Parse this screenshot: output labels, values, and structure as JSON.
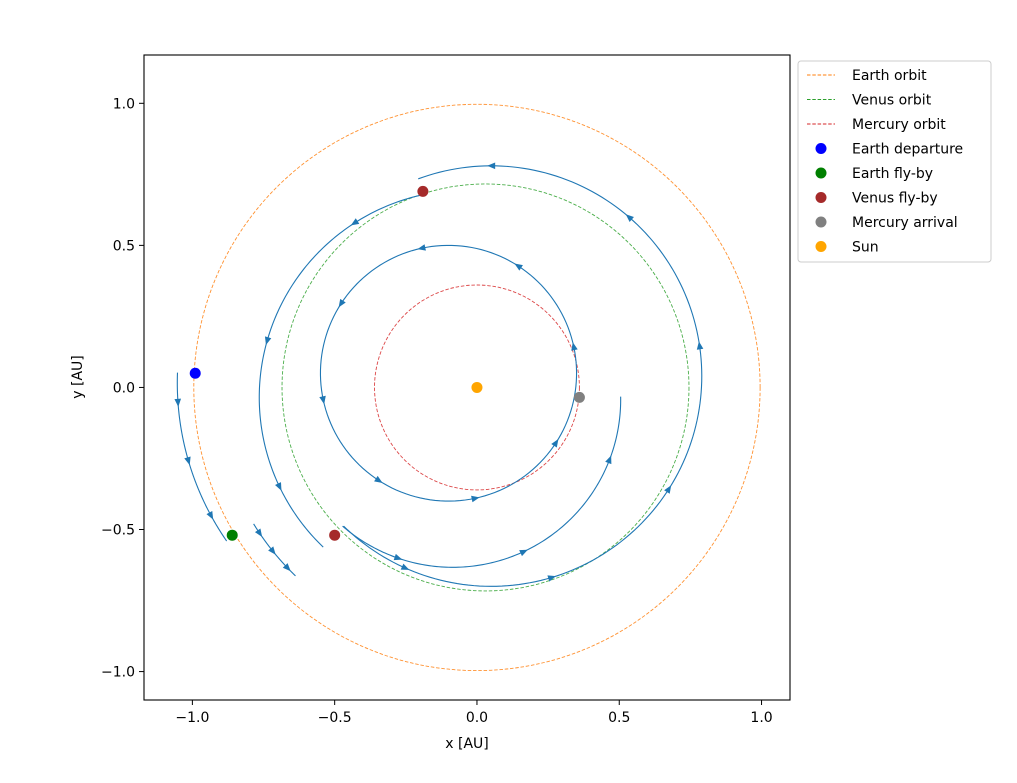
{
  "chart_data": {
    "type": "line",
    "xlabel": "x [AU]",
    "ylabel": "y [AU]",
    "xlim": [
      -1.17,
      1.1
    ],
    "ylim": [
      -1.1,
      1.17
    ],
    "aspect": "equal",
    "grid": false,
    "legend_position": "upper right, outside axes",
    "x_ticks": [
      -1.0,
      -0.5,
      0.0,
      0.5,
      1.0
    ],
    "y_ticks": [
      -1.0,
      -0.5,
      0.0,
      0.5,
      1.0
    ],
    "x_tick_labels": [
      "−1.0",
      "−0.5",
      "0.0",
      "0.5",
      "1.0"
    ],
    "y_tick_labels": [
      "−1.0",
      "−0.5",
      "0.0",
      "0.5",
      "1.0"
    ],
    "trajectory": {
      "color": "#1f77b4",
      "legs": [
        {
          "from": [
            -0.995,
            0.05
          ],
          "to": [
            -0.85,
            -0.52
          ],
          "center": [
            -0.073,
            0.016
          ],
          "radius": 0.98,
          "sweep": "ccw",
          "turns": 1
        },
        {
          "from": [
            -0.85,
            -0.52
          ],
          "to": [
            -0.5,
            -0.52
          ],
          "center": [
            0.0,
            0.0
          ],
          "radius": 0.92,
          "sweep": "ccw",
          "turns": 1
        },
        {
          "from": [
            -0.5,
            -0.52
          ],
          "to": [
            -0.19,
            0.69
          ],
          "center": [
            0.05,
            0.04
          ],
          "radius": 0.74,
          "sweep": "ccw",
          "turns": 1
        },
        {
          "from": [
            -0.19,
            0.69
          ],
          "to": [
            -0.5,
            -0.52
          ],
          "center": [
            -0.035,
            -0.035
          ],
          "radius": 0.73,
          "sweep": "ccw",
          "turns": 1
        },
        {
          "from": [
            -0.5,
            -0.52
          ],
          "to": [
            0.36,
            -0.035
          ],
          "center": [
            -0.085,
            -0.043
          ],
          "radius": 0.59,
          "sweep": "ccw",
          "turns": 1
        },
        {
          "from": [
            0.36,
            -0.035
          ],
          "to": [
            0.36,
            -0.035
          ],
          "center": [
            -0.1,
            0.05
          ],
          "radius": 0.45,
          "sweep": "ccw",
          "turns": 1
        }
      ]
    },
    "series": [
      {
        "name": "Earth orbit",
        "style": "dashed",
        "color": "#ff7f0e",
        "center": [
          0,
          0
        ],
        "radius": 0.995
      },
      {
        "name": "Venus orbit",
        "style": "dashed",
        "color": "#2ca02c",
        "center": [
          0.03,
          0.0
        ],
        "radius": 0.715
      },
      {
        "name": "Mercury orbit",
        "style": "dashed",
        "color": "#d62728",
        "center": [
          0.0,
          0.0
        ],
        "radius": 0.36
      }
    ],
    "points": [
      {
        "name": "Earth departure",
        "x": -0.99,
        "y": 0.05,
        "color": "#0000ff"
      },
      {
        "name": "Earth fly-by",
        "x": -0.86,
        "y": -0.52,
        "color": "#008000"
      },
      {
        "name": "Venus fly-by",
        "x": -0.19,
        "y": 0.69,
        "color": "#a52a2a"
      },
      {
        "name": "Venus fly-by",
        "x": -0.5,
        "y": -0.52,
        "color": "#a52a2a",
        "legend": false
      },
      {
        "name": "Mercury arrival",
        "x": 0.36,
        "y": -0.035,
        "color": "#808080"
      },
      {
        "name": "Sun",
        "x": 0.0,
        "y": 0.0,
        "color": "#ffa500"
      }
    ],
    "legend": [
      {
        "label": "Earth orbit",
        "kind": "line",
        "color": "#ff7f0e"
      },
      {
        "label": "Venus orbit",
        "kind": "line",
        "color": "#2ca02c"
      },
      {
        "label": "Mercury orbit",
        "kind": "line",
        "color": "#d62728"
      },
      {
        "label": "Earth departure",
        "kind": "marker",
        "color": "#0000ff"
      },
      {
        "label": "Earth fly-by",
        "kind": "marker",
        "color": "#008000"
      },
      {
        "label": "Venus fly-by",
        "kind": "marker",
        "color": "#a52a2a"
      },
      {
        "label": "Mercury arrival",
        "kind": "marker",
        "color": "#808080"
      },
      {
        "label": "Sun",
        "kind": "marker",
        "color": "#ffa500"
      }
    ]
  }
}
